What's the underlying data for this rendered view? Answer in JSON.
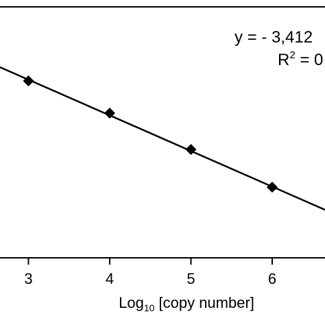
{
  "chart_data": {
    "type": "scatter",
    "title": "",
    "xlabel": {
      "base": "Log",
      "subscript": "10",
      "rest": " [copy number]"
    },
    "ylabel": "",
    "xlim": [
      2.65,
      6.65
    ],
    "x_ticks": [
      3,
      4,
      5,
      6
    ],
    "x_tick_labels": [
      "3",
      "4",
      "5",
      "6"
    ],
    "grid": false,
    "series": [
      {
        "marker": "diamond",
        "color": "#000000",
        "points": [
          {
            "x": 3,
            "y": 118
          },
          {
            "x": 4,
            "y": 165
          },
          {
            "x": 5,
            "y": 218
          },
          {
            "x": 6,
            "y": 273
          }
        ]
      }
    ],
    "fit_line": {
      "x0": 2.65,
      "y0": 98,
      "x1": 6.65,
      "y1": 306
    },
    "annotation": {
      "equation_prefix": "y = - 3,412",
      "r2_base": "R",
      "r2_sup": "2",
      "r2_rest": " = 0"
    }
  }
}
